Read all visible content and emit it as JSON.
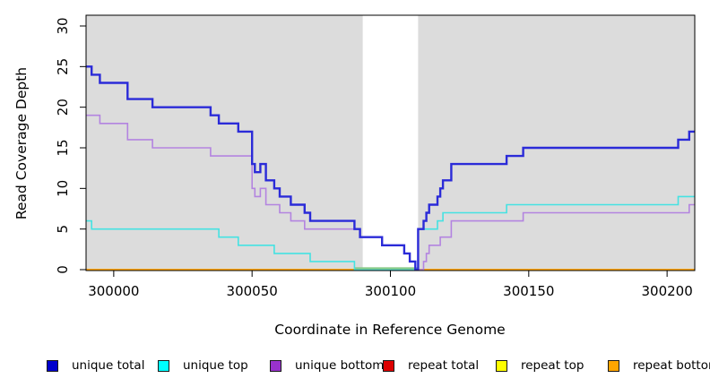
{
  "axes": {
    "x_title": "Coordinate in Reference Genome",
    "y_title": "Read Coverage Depth",
    "x_ticks": [
      300000,
      300050,
      300100,
      300150,
      300200
    ],
    "y_ticks": [
      0,
      5,
      10,
      15,
      20,
      25,
      30
    ],
    "x_range": [
      299990,
      300210
    ],
    "y_range": [
      0,
      30
    ]
  },
  "chart_data": {
    "type": "line",
    "style": "step",
    "title": "",
    "xlabel": "Coordinate in Reference Genome",
    "ylabel": "Read Coverage Depth",
    "xlim": [
      299990,
      300210
    ],
    "ylim": [
      0,
      30
    ],
    "grid": false,
    "plot_bg_color": "#DCDCDC",
    "highlight_band": {
      "from": 300090,
      "to": 300110,
      "color": "#FFFFFF"
    },
    "series": [
      {
        "name": "repeat total",
        "color": "#CC0000",
        "width": 2,
        "points": [
          [
            299990,
            0
          ],
          [
            300210,
            0
          ]
        ]
      },
      {
        "name": "repeat top",
        "color": "#FFFF00",
        "width": 2,
        "points": [
          [
            299990,
            0
          ],
          [
            300210,
            0
          ]
        ]
      },
      {
        "name": "repeat bottom",
        "color": "#FFA500",
        "width": 2,
        "points": [
          [
            299990,
            0
          ],
          [
            300210,
            0
          ]
        ]
      },
      {
        "name": "unique top zero overlap",
        "color": "#84C884",
        "width": 1.6,
        "dy": -1.8,
        "points": [
          [
            300087,
            0
          ],
          [
            300110,
            0
          ]
        ]
      },
      {
        "name": "unique bottom",
        "color": "#B384E0",
        "width": 1.6,
        "points": [
          [
            299990,
            19
          ],
          [
            299995,
            18
          ],
          [
            300005,
            16
          ],
          [
            300014,
            15
          ],
          [
            300035,
            14
          ],
          [
            300050,
            10
          ],
          [
            300051,
            9
          ],
          [
            300053,
            10
          ],
          [
            300055,
            8
          ],
          [
            300060,
            7
          ],
          [
            300064,
            6
          ],
          [
            300069,
            5
          ],
          [
            300089,
            4
          ],
          [
            300097,
            3
          ],
          [
            300105,
            2
          ],
          [
            300107,
            1
          ],
          [
            300109,
            0
          ],
          [
            300112,
            1
          ],
          [
            300113,
            2
          ],
          [
            300114,
            3
          ],
          [
            300118,
            4
          ],
          [
            300122,
            6
          ],
          [
            300148,
            7
          ],
          [
            300208,
            8
          ],
          [
            300210,
            8
          ]
        ]
      },
      {
        "name": "unique top",
        "color": "#45E2E2",
        "width": 1.6,
        "points": [
          [
            299990,
            6
          ],
          [
            299992,
            5
          ],
          [
            300038,
            4
          ],
          [
            300045,
            3
          ],
          [
            300058,
            2
          ],
          [
            300071,
            1
          ],
          [
            300087,
            0
          ],
          [
            300110,
            5
          ],
          [
            300117,
            6
          ],
          [
            300119,
            7
          ],
          [
            300142,
            8
          ],
          [
            300204,
            9
          ],
          [
            300210,
            9
          ]
        ]
      },
      {
        "name": "unique total",
        "color": "#2B2BD8",
        "width": 2.4,
        "points": [
          [
            299990,
            25
          ],
          [
            299992,
            24
          ],
          [
            299995,
            23
          ],
          [
            300005,
            21
          ],
          [
            300014,
            20
          ],
          [
            300035,
            19
          ],
          [
            300038,
            18
          ],
          [
            300045,
            17
          ],
          [
            300050,
            13
          ],
          [
            300051,
            12
          ],
          [
            300053,
            13
          ],
          [
            300055,
            11
          ],
          [
            300058,
            10
          ],
          [
            300060,
            9
          ],
          [
            300064,
            8
          ],
          [
            300069,
            7
          ],
          [
            300071,
            6
          ],
          [
            300087,
            5
          ],
          [
            300089,
            4
          ],
          [
            300097,
            3
          ],
          [
            300105,
            2
          ],
          [
            300107,
            1
          ],
          [
            300109,
            0
          ],
          [
            300110,
            5
          ],
          [
            300112,
            6
          ],
          [
            300113,
            7
          ],
          [
            300114,
            8
          ],
          [
            300117,
            9
          ],
          [
            300118,
            10
          ],
          [
            300119,
            11
          ],
          [
            300122,
            13
          ],
          [
            300142,
            14
          ],
          [
            300148,
            15
          ],
          [
            300204,
            16
          ],
          [
            300208,
            17
          ],
          [
            300210,
            17
          ]
        ]
      }
    ]
  },
  "legend": {
    "items": [
      {
        "label": "unique total",
        "color": "#0000CD"
      },
      {
        "label": "unique top",
        "color": "#00FFFF"
      },
      {
        "label": "unique bottom",
        "color": "#9932CC"
      },
      {
        "label": "repeat total",
        "color": "#DD0000"
      },
      {
        "label": "repeat top",
        "color": "#FFFF00"
      },
      {
        "label": "repeat bottom",
        "color": "#FFA500"
      }
    ]
  }
}
